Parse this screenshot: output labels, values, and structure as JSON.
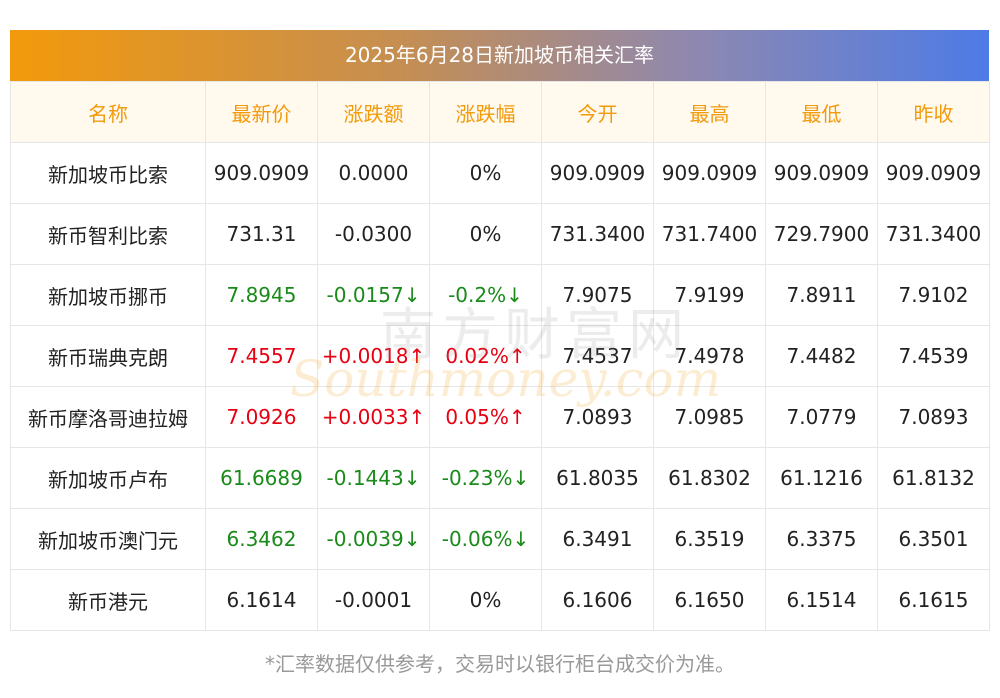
{
  "title": "2025年6月28日新加坡币相关汇率",
  "headers": [
    "名称",
    "最新价",
    "涨跌额",
    "涨跌幅",
    "今开",
    "最高",
    "最低",
    "昨收"
  ],
  "rows": [
    {
      "name": "新加坡币比索",
      "latest": "909.0909",
      "change": "0.0000",
      "pct": "0%",
      "open": "909.0909",
      "high": "909.0909",
      "low": "909.0909",
      "prev": "909.0909",
      "dir": "flat"
    },
    {
      "name": "新币智利比索",
      "latest": "731.31",
      "change": "-0.0300",
      "pct": "0%",
      "open": "731.3400",
      "high": "731.7400",
      "low": "729.7900",
      "prev": "731.3400",
      "dir": "flat"
    },
    {
      "name": "新加坡币挪币",
      "latest": "7.8945",
      "change": "-0.0157↓",
      "pct": "-0.2%↓",
      "open": "7.9075",
      "high": "7.9199",
      "low": "7.8911",
      "prev": "7.9102",
      "dir": "down"
    },
    {
      "name": "新币瑞典克朗",
      "latest": "7.4557",
      "change": "+0.0018↑",
      "pct": "0.02%↑",
      "open": "7.4537",
      "high": "7.4978",
      "low": "7.4482",
      "prev": "7.4539",
      "dir": "up"
    },
    {
      "name": "新币摩洛哥迪拉姆",
      "latest": "7.0926",
      "change": "+0.0033↑",
      "pct": "0.05%↑",
      "open": "7.0893",
      "high": "7.0985",
      "low": "7.0779",
      "prev": "7.0893",
      "dir": "up"
    },
    {
      "name": "新加坡币卢布",
      "latest": "61.6689",
      "change": "-0.1443↓",
      "pct": "-0.23%↓",
      "open": "61.8035",
      "high": "61.8302",
      "low": "61.1216",
      "prev": "61.8132",
      "dir": "down"
    },
    {
      "name": "新加坡币澳门元",
      "latest": "6.3462",
      "change": "-0.0039↓",
      "pct": "-0.06%↓",
      "open": "6.3491",
      "high": "6.3519",
      "low": "6.3375",
      "prev": "6.3501",
      "dir": "down"
    },
    {
      "name": "新币港元",
      "latest": "6.1614",
      "change": "-0.0001",
      "pct": "0%",
      "open": "6.1606",
      "high": "6.1650",
      "low": "6.1514",
      "prev": "6.1615",
      "dir": "flat"
    }
  ],
  "note": "*汇率数据仅供参考，交易时以银行柜台成交价为准。",
  "watermark": {
    "cn": "南方财富网",
    "en": "Southmoney.com"
  },
  "colors": {
    "up": "#e60012",
    "down": "#1a8a1a",
    "header": "#f39a0b"
  }
}
